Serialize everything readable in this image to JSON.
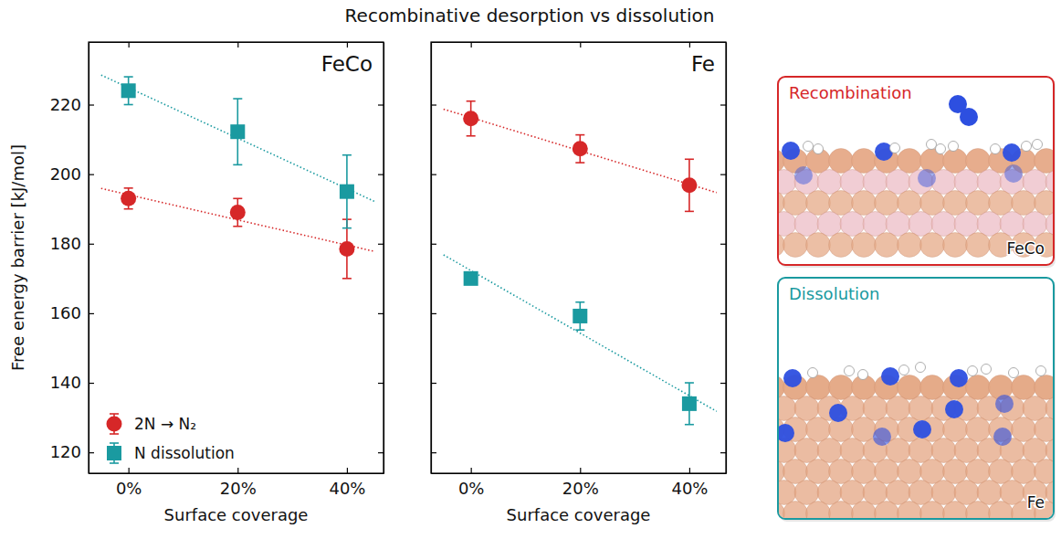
{
  "title": "Recombinative desorption vs dissolution",
  "chart_data": [
    {
      "type": "scatter",
      "title": "FeCo",
      "x": [
        0,
        20,
        40
      ],
      "xlim": [
        -7.3,
        46.7
      ],
      "xticks": [
        {
          "value": 0,
          "label": "0%"
        },
        {
          "value": 20,
          "label": "20%"
        },
        {
          "value": 40,
          "label": "40%"
        }
      ],
      "xlabel": "Surface coverage",
      "ylabel": "Free energy barrier [kJ/mol]",
      "ylim": [
        114,
        238
      ],
      "yticks": [
        120,
        140,
        160,
        180,
        200,
        220
      ],
      "legend": "lower left",
      "series": [
        {
          "name": "2N → N₂",
          "color": "#d62728",
          "marker": "circle",
          "values": [
            193,
            189,
            178.5
          ],
          "error": [
            3,
            4,
            8.5
          ],
          "fit": {
            "x": [
              -5,
              45
            ],
            "values": [
              195.9,
              177.8
            ],
            "line_style": "dotted"
          }
        },
        {
          "name": "N dissolution",
          "color": "#1a9aa0",
          "marker": "square",
          "values": [
            224,
            212.2,
            195
          ],
          "error": [
            4,
            9.5,
            10.5
          ],
          "fit": {
            "x": [
              -5,
              45
            ],
            "values": [
              228.5,
              192.2
            ],
            "line_style": "dotted"
          }
        }
      ]
    },
    {
      "type": "scatter",
      "title": "Fe",
      "x": [
        0,
        20,
        40
      ],
      "xlim": [
        -7.3,
        46.7
      ],
      "xticks": [
        {
          "value": 0,
          "label": "0%"
        },
        {
          "value": 20,
          "label": "20%"
        },
        {
          "value": 40,
          "label": "40%"
        }
      ],
      "xlabel": "Surface coverage",
      "ylim": [
        114,
        238
      ],
      "yticks": [
        120,
        140,
        160,
        180,
        200,
        220
      ],
      "tick_labels": "x",
      "series": [
        {
          "color": "#d62728",
          "marker": "circle",
          "values": [
            216,
            207.3,
            196.8
          ],
          "error": [
            5,
            4,
            7.5
          ],
          "fit": {
            "x": [
              -5,
              45
            ],
            "values": [
              218.7,
              194.7
            ],
            "line_style": "dotted"
          }
        },
        {
          "color": "#1a9aa0",
          "marker": "square",
          "values": [
            170,
            159.2,
            134
          ],
          "error": [
            1,
            4,
            6
          ],
          "fit": {
            "x": [
              -5,
              45
            ],
            "values": [
              176.8,
              131.8
            ],
            "line_style": "dotted"
          }
        }
      ]
    }
  ],
  "illustrations": [
    {
      "title": "Recombination",
      "label": "FeCo"
    },
    {
      "title": "Dissolution",
      "label": "Fe"
    }
  ]
}
